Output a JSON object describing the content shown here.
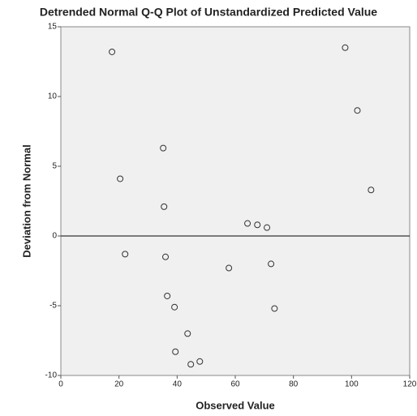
{
  "chart_data": {
    "type": "scatter",
    "title": "Detrended Normal Q-Q Plot of Unstandardized Predicted Value",
    "x_label": "Observed Value",
    "y_label": "Deviation from Normal",
    "x": [
      17.6,
      97.8,
      102,
      35.2,
      20.4,
      106.7,
      35.5,
      64.2,
      67.6,
      70.9,
      22.1,
      36.0,
      57.8,
      72.3,
      36.6,
      39.1,
      73.5,
      43.6,
      39.4,
      47.8,
      44.7
    ],
    "values": [
      13.2,
      13.5,
      9.0,
      6.3,
      4.1,
      3.3,
      2.1,
      0.9,
      0.8,
      0.6,
      -1.3,
      -1.5,
      -2.3,
      -2.0,
      -4.3,
      -5.1,
      -5.2,
      -7.0,
      -8.3,
      -9.0,
      -9.2
    ],
    "color": "#333333",
    "xlim": [
      0,
      120
    ],
    "xticks": [
      0,
      20,
      40,
      60,
      80,
      100,
      120
    ],
    "ylim": [
      -10,
      15
    ],
    "yticks": [
      -10,
      -5,
      0,
      5,
      10,
      15
    ],
    "reference_y": 0
  }
}
